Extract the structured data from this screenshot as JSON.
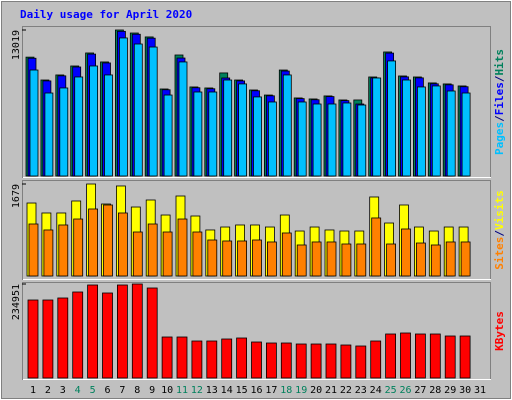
{
  "chart_data": [
    {
      "type": "bar",
      "title": "Daily usage for April 2020",
      "ylim": [
        0,
        13019
      ],
      "yticks": [
        13019
      ],
      "legend_separator": "/",
      "series": [
        {
          "name": "Hits",
          "color": "#00805c",
          "values": [
            10600,
            8560,
            9010,
            9810,
            10970,
            10170,
            13019,
            12750,
            12400,
            7760,
            10790,
            7940,
            7850,
            9190,
            8560,
            7670,
            7220,
            9450,
            6960,
            6870,
            7140,
            6780,
            6780,
            8830,
            11060,
            8920,
            8830,
            8300,
            8210,
            8030,
            null
          ]
        },
        {
          "name": "Files",
          "color": "#0000ff",
          "values": [
            10500,
            8480,
            8930,
            9720,
            10870,
            10080,
            12900,
            12640,
            12290,
            7690,
            10520,
            7870,
            7780,
            8740,
            8480,
            7600,
            7150,
            9360,
            6900,
            6800,
            7080,
            6720,
            6420,
            8750,
            10960,
            8840,
            8750,
            8220,
            8130,
            7960,
            null
          ]
        },
        {
          "name": "Pages",
          "color": "#00c0ff",
          "values": [
            9450,
            7400,
            7850,
            8830,
            9810,
            9010,
            12310,
            11770,
            11500,
            7220,
            10170,
            7490,
            7490,
            8560,
            8210,
            7050,
            6600,
            9010,
            6600,
            6420,
            6420,
            6510,
            6330,
            8740,
            10260,
            8560,
            7940,
            8030,
            7580,
            7400,
            null
          ]
        }
      ]
    },
    {
      "type": "bar",
      "ylim": [
        0,
        1679
      ],
      "yticks": [
        1679
      ],
      "legend_separator": "/",
      "series": [
        {
          "name": "Visits",
          "color": "#ffff00",
          "values": [
            1332,
            1150,
            1150,
            1369,
            1679,
            1314,
            1643,
            1259,
            1387,
            1113,
            1460,
            1095,
            840,
            894,
            931,
            931,
            894,
            1113,
            821,
            894,
            840,
            821,
            821,
            1442,
            967,
            1296,
            894,
            821,
            894,
            894,
            null
          ]
        },
        {
          "name": "Sites",
          "color": "#ff8000",
          "values": [
            949,
            840,
            931,
            1040,
            1223,
            1296,
            1150,
            803,
            949,
            803,
            1040,
            803,
            657,
            639,
            639,
            657,
            621,
            785,
            566,
            621,
            621,
            584,
            584,
            1059,
            584,
            858,
            602,
            566,
            621,
            621,
            null
          ]
        }
      ]
    },
    {
      "type": "bar",
      "ylim": [
        0,
        234951
      ],
      "yticks": [
        234951
      ],
      "series": [
        {
          "name": "KBytes",
          "color": "#ff0000",
          "values": [
            194960,
            194960,
            199960,
            214960,
            232450,
            212460,
            232450,
            234951,
            224960,
            102480,
            102480,
            92480,
            92480,
            97480,
            99980,
            89980,
            87480,
            87480,
            84980,
            84980,
            84980,
            82480,
            79980,
            92480,
            109980,
            112480,
            109980,
            109980,
            104980,
            104980,
            null
          ]
        }
      ],
      "categories": [
        "1",
        "2",
        "3",
        "4",
        "5",
        "6",
        "7",
        "8",
        "9",
        "10",
        "11",
        "12",
        "13",
        "14",
        "15",
        "16",
        "17",
        "18",
        "19",
        "20",
        "21",
        "22",
        "23",
        "24",
        "25",
        "26",
        "27",
        "28",
        "29",
        "30",
        "31"
      ],
      "category_colors": [
        "#000000",
        "#000000",
        "#000000",
        "#00805c",
        "#00805c",
        "#000000",
        "#000000",
        "#000000",
        "#000000",
        "#000000",
        "#00805c",
        "#00805c",
        "#000000",
        "#000000",
        "#000000",
        "#000000",
        "#000000",
        "#00805c",
        "#00805c",
        "#000000",
        "#000000",
        "#000000",
        "#000000",
        "#000000",
        "#00805c",
        "#00805c",
        "#000000",
        "#000000",
        "#000000",
        "#000000",
        "#000000"
      ]
    }
  ]
}
